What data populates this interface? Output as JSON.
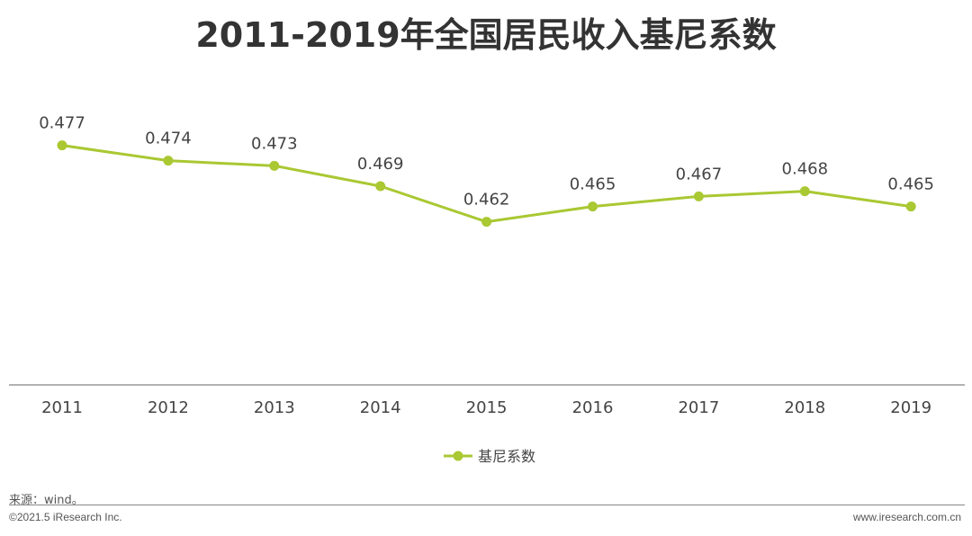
{
  "chart_data": {
    "type": "line",
    "title": "2011-2019年全国居民收入基尼系数",
    "categories": [
      "2011",
      "2012",
      "2013",
      "2014",
      "2015",
      "2016",
      "2017",
      "2018",
      "2019"
    ],
    "series": [
      {
        "name": "基尼系数",
        "values": [
          0.477,
          0.474,
          0.473,
          0.469,
          0.462,
          0.465,
          0.467,
          0.468,
          0.465
        ],
        "labels": [
          "0.477",
          "0.474",
          "0.473",
          "0.469",
          "0.462",
          "0.465",
          "0.467",
          "0.468",
          "0.465"
        ]
      }
    ],
    "xlabel": "",
    "ylabel": "",
    "ylim": [
      0.43,
      0.478
    ],
    "grid": false,
    "legend_position": "bottom",
    "colors": {
      "series": "#a9c832",
      "axis": "#999999",
      "text": "#444444"
    }
  },
  "footer": {
    "source": "来源：wind。",
    "copyright": "©2021.5 iResearch Inc.",
    "website": "www.iresearch.com.cn"
  }
}
